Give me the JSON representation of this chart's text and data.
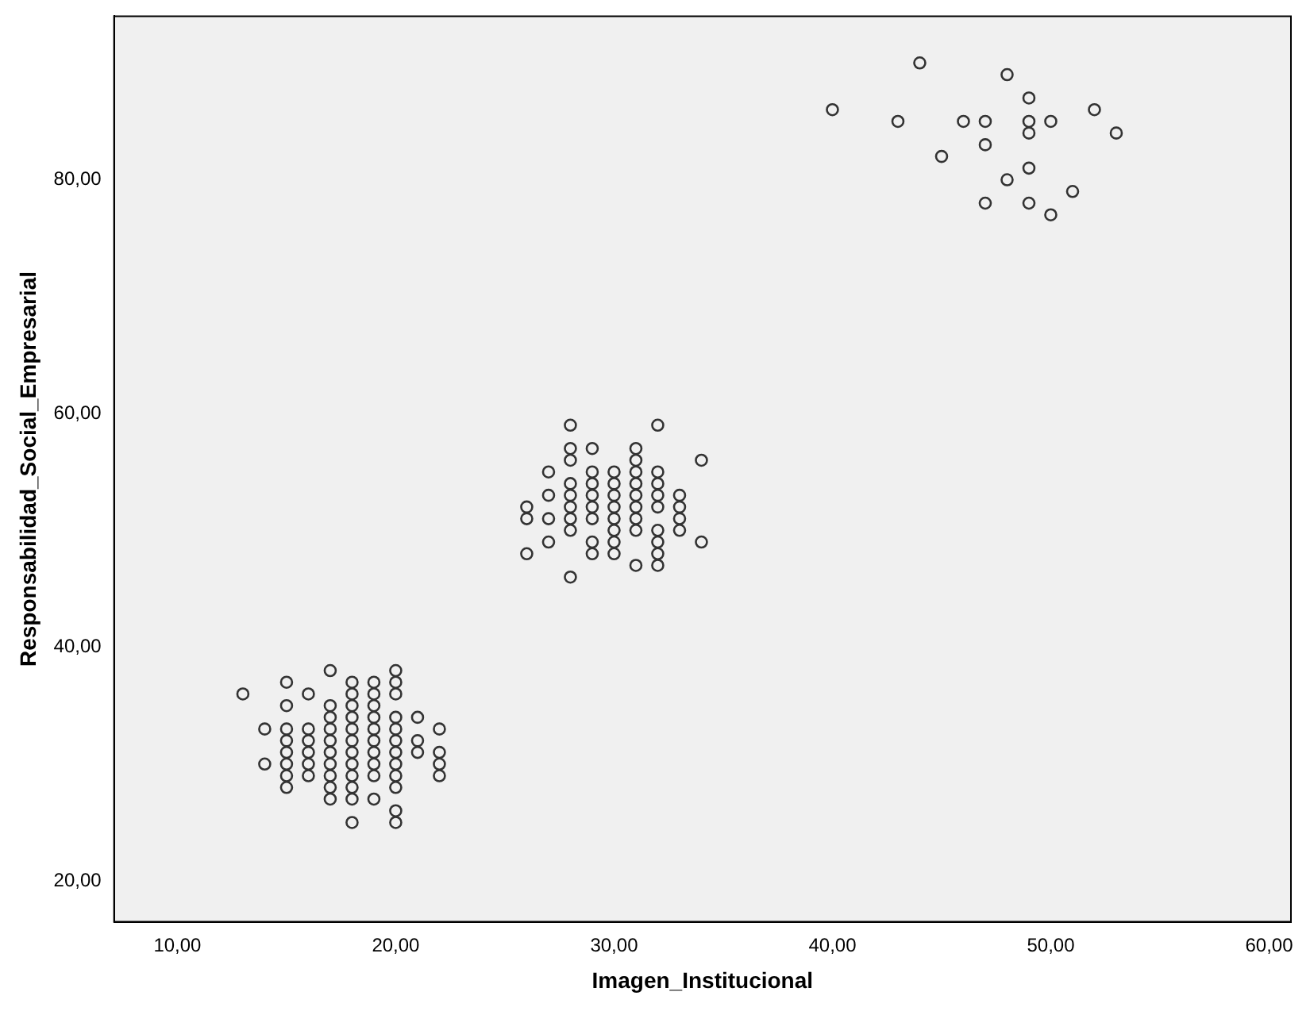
{
  "chart_data": {
    "type": "scatter",
    "xlabel": "Imagen_Institucional",
    "ylabel": "Responsabilidad_Social_Empresarial",
    "marker": "circle",
    "grid": false,
    "legend": false,
    "xlim": [
      7.1,
      61
    ],
    "ylim": [
      16.5,
      94
    ],
    "xticks": [
      {
        "value": 10,
        "label": "10,00"
      },
      {
        "value": 20,
        "label": "20,00"
      },
      {
        "value": 30,
        "label": "30,00"
      },
      {
        "value": 40,
        "label": "40,00"
      },
      {
        "value": 50,
        "label": "50,00"
      },
      {
        "value": 60,
        "label": "60,00"
      }
    ],
    "yticks": [
      {
        "value": 20,
        "label": "20,00"
      },
      {
        "value": 40,
        "label": "40,00"
      },
      {
        "value": 60,
        "label": "60,00"
      },
      {
        "value": 80,
        "label": "80,00"
      }
    ],
    "series": [
      {
        "color": "#333333",
        "x": [
          13,
          14,
          14,
          15,
          15,
          15,
          15,
          15,
          15,
          15,
          15,
          16,
          16,
          16,
          16,
          16,
          16,
          17,
          17,
          17,
          17,
          17,
          17,
          17,
          17,
          17,
          17,
          18,
          18,
          18,
          18,
          18,
          18,
          18,
          18,
          18,
          18,
          18,
          18,
          19,
          19,
          19,
          19,
          19,
          19,
          19,
          19,
          19,
          19,
          20,
          20,
          20,
          20,
          20,
          20,
          20,
          20,
          20,
          20,
          20,
          20,
          21,
          21,
          21,
          22,
          22,
          22,
          22,
          26,
          26,
          26,
          27,
          27,
          27,
          27,
          28,
          28,
          28,
          28,
          28,
          28,
          28,
          28,
          28,
          29,
          29,
          29,
          29,
          29,
          29,
          29,
          29,
          30,
          30,
          30,
          30,
          30,
          30,
          30,
          30,
          31,
          31,
          31,
          31,
          31,
          31,
          31,
          31,
          31,
          32,
          32,
          32,
          32,
          32,
          32,
          32,
          32,
          32,
          33,
          33,
          33,
          33,
          34,
          34,
          40,
          43,
          44,
          45,
          46,
          47,
          47,
          47,
          48,
          48,
          49,
          49,
          49,
          49,
          49,
          50,
          50,
          51,
          52,
          53
        ],
        "values": [
          36,
          30,
          33,
          28,
          29,
          30,
          31,
          32,
          33,
          35,
          37,
          29,
          30,
          31,
          32,
          33,
          36,
          27,
          28,
          29,
          30,
          31,
          32,
          33,
          34,
          35,
          38,
          25,
          27,
          28,
          29,
          30,
          31,
          32,
          33,
          34,
          35,
          36,
          37,
          27,
          29,
          30,
          31,
          32,
          33,
          34,
          35,
          36,
          37,
          25,
          26,
          28,
          29,
          30,
          31,
          32,
          33,
          34,
          36,
          37,
          38,
          31,
          32,
          34,
          29,
          30,
          31,
          33,
          48,
          51,
          52,
          49,
          51,
          53,
          55,
          46,
          50,
          51,
          52,
          53,
          54,
          56,
          57,
          59,
          48,
          49,
          51,
          52,
          53,
          54,
          55,
          57,
          48,
          49,
          50,
          51,
          52,
          53,
          54,
          55,
          47,
          50,
          51,
          52,
          53,
          54,
          55,
          56,
          57,
          47,
          48,
          49,
          50,
          52,
          53,
          54,
          55,
          59,
          50,
          51,
          52,
          53,
          49,
          56,
          86,
          85,
          90,
          82,
          85,
          85,
          83,
          78,
          89,
          80,
          87,
          85,
          84,
          81,
          78,
          85,
          77,
          79,
          86,
          84
        ]
      }
    ]
  }
}
